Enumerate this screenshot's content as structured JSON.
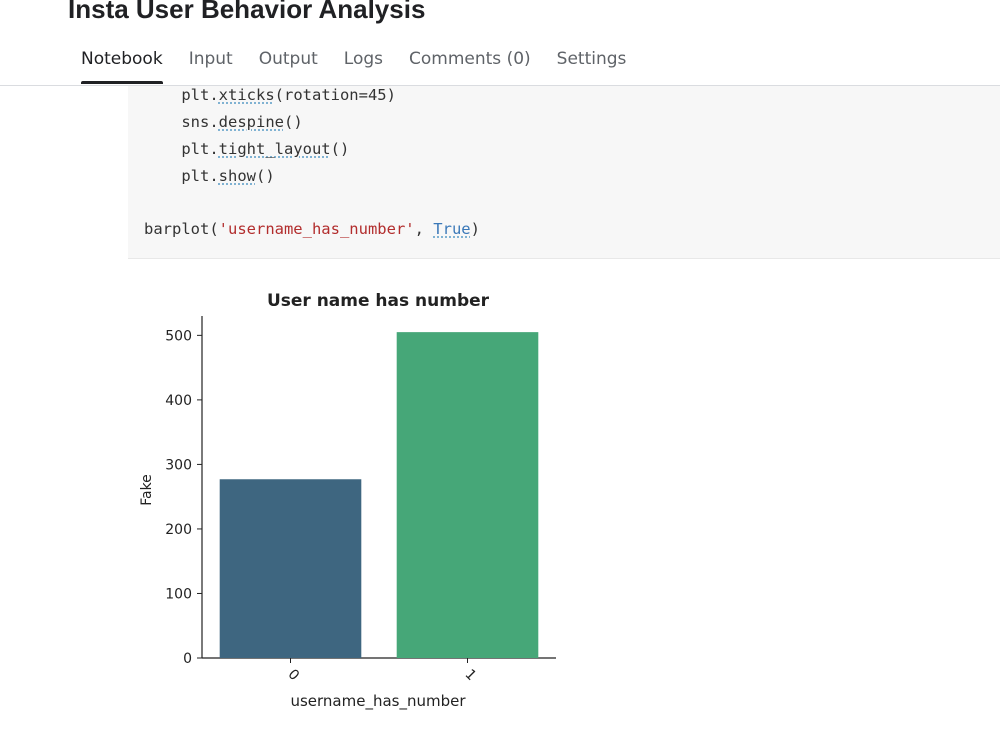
{
  "header": {
    "title": "Insta User Behavior Analysis"
  },
  "tabs": [
    {
      "label": "Notebook",
      "active": true
    },
    {
      "label": "Input",
      "active": false
    },
    {
      "label": "Output",
      "active": false
    },
    {
      "label": "Logs",
      "active": false
    },
    {
      "label": "Comments (0)",
      "active": false
    },
    {
      "label": "Settings",
      "active": false
    }
  ],
  "code_cell": {
    "lines": [
      {
        "indent": "    ",
        "pre": "plt.",
        "fn": "xticks",
        "post": "(rotation=45)"
      },
      {
        "indent": "    ",
        "pre": "sns.",
        "fn": "despine",
        "post": "()"
      },
      {
        "indent": "    ",
        "pre": "plt.",
        "fn": "tight_layout",
        "post": "()"
      },
      {
        "indent": "    ",
        "pre": "plt.",
        "fn": "show",
        "post": "()"
      }
    ],
    "call": {
      "fn": "barplot(",
      "arg": "'username_has_number'",
      "sep": ", ",
      "kw": "True",
      "end": ")"
    }
  },
  "chart_data": {
    "type": "bar",
    "title": "User name has number",
    "xlabel": "username_has_number",
    "ylabel": "Fake",
    "categories": [
      "0",
      "1"
    ],
    "values": [
      277,
      505
    ],
    "colors": [
      "#3e6680",
      "#46a778"
    ],
    "ylim": [
      0,
      530
    ],
    "yticks": [
      0,
      100,
      200,
      300,
      400,
      500
    ],
    "xtick_rotation": 45,
    "grid": false,
    "legend": "none"
  }
}
